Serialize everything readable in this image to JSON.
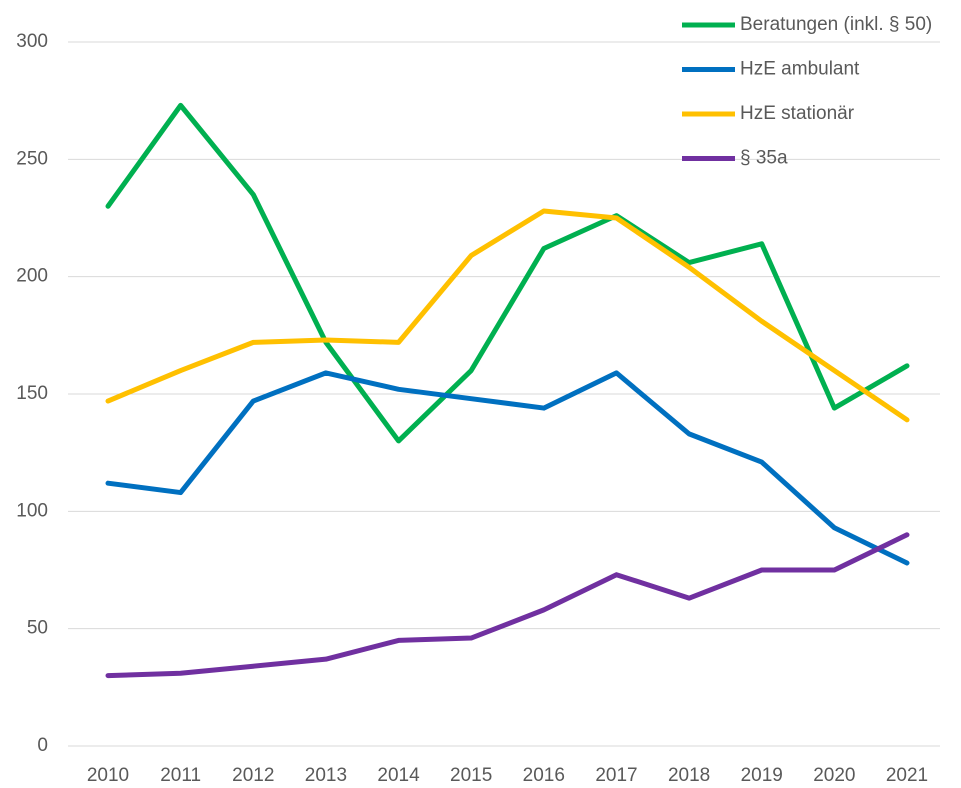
{
  "chart_data": {
    "type": "line",
    "categories": [
      "2010",
      "2011",
      "2012",
      "2013",
      "2014",
      "2015",
      "2016",
      "2017",
      "2018",
      "2019",
      "2020",
      "2021"
    ],
    "series": [
      {
        "name": "Beratungen (inkl. § 50)",
        "color": "#00b050",
        "values": [
          230,
          273,
          235,
          172,
          130,
          160,
          212,
          226,
          206,
          214,
          144,
          162
        ]
      },
      {
        "name": "HzE ambulant",
        "color": "#0070c0",
        "values": [
          112,
          108,
          147,
          159,
          152,
          148,
          144,
          159,
          133,
          121,
          93,
          78
        ]
      },
      {
        "name": "HzE stationär",
        "color": "#ffc000",
        "values": [
          147,
          160,
          172,
          173,
          172,
          209,
          228,
          225,
          204,
          181,
          160,
          139
        ]
      },
      {
        "name": "§ 35a",
        "color": "#7030a0",
        "values": [
          30,
          31,
          34,
          37,
          45,
          46,
          58,
          73,
          63,
          75,
          75,
          90
        ]
      }
    ],
    "ylim": [
      0,
      300
    ],
    "yticks": [
      0,
      50,
      100,
      150,
      200,
      250,
      300
    ],
    "grid": true,
    "legend": "top-right"
  }
}
